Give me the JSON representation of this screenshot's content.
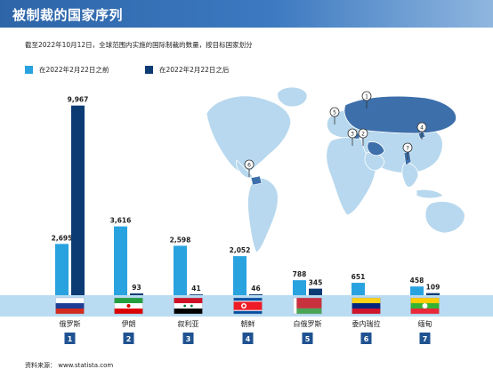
{
  "header": {
    "title": "被制裁的国家序列"
  },
  "subtitle": "截至2022年10月12日，全球范围内实施的国际制裁的数量，按目标国家划分",
  "source": "资料来源：  www.statista.com",
  "colors": {
    "before": "#29a3df",
    "after": "#0c3b74",
    "band": "#b9dcf3",
    "badge": "#1f5290",
    "map_land": "#b7d8ee",
    "map_highlight": "#3d6fab"
  },
  "chart_data": {
    "type": "bar",
    "categories": [
      "俄罗斯",
      "伊朗",
      "叙利亚",
      "朝鲜",
      "白俄罗斯",
      "委内瑞拉",
      "缅甸"
    ],
    "ranks": [
      "1",
      "2",
      "3",
      "4",
      "5",
      "6",
      "7"
    ],
    "series": [
      {
        "name": "在2022年2月22日之前",
        "values": [
          2695,
          3616,
          2598,
          2052,
          788,
          651,
          458
        ]
      },
      {
        "name": "在2022年2月22日之后",
        "values": [
          9967,
          93,
          41,
          46,
          345,
          null,
          109
        ]
      }
    ],
    "value_labels": {
      "before": [
        "2,695",
        "3,616",
        "2,598",
        "2,052",
        "788",
        "651",
        "458"
      ],
      "after": [
        "9,967",
        "93",
        "41",
        "46",
        "345",
        "",
        "109"
      ]
    },
    "ylim": [
      0,
      10000
    ],
    "legend_position": "top-left",
    "grid": false
  }
}
